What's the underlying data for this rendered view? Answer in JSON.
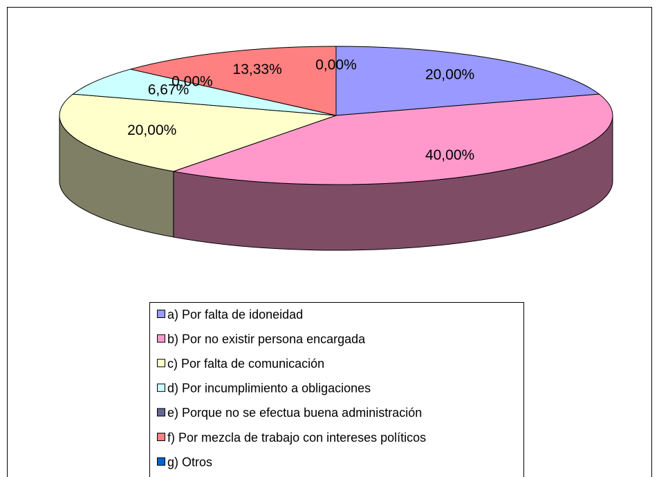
{
  "chart_data": {
    "type": "pie",
    "three_d": true,
    "categories": [
      "a) Por falta de idoneidad",
      "b) Por no existir persona encargada",
      "c) Por falta de comunicación",
      "d) Por incumplimiento a obligaciones",
      "e) Porque no se efectua buena administración",
      "f) Por mezcla de trabajo con intereses políticos",
      "g) Otros"
    ],
    "values": [
      20,
      40,
      20,
      6.67,
      0,
      13.33,
      0
    ],
    "value_labels": [
      "20,00%",
      "40,00%",
      "20,00%",
      "6,67%",
      "0,00%",
      "13,33%",
      "0,00%"
    ],
    "colors": [
      "#9999ff",
      "#ff99cc",
      "#ffffcc",
      "#ccffff",
      "#666699",
      "#ff8080",
      "#0066cc"
    ],
    "legend": "bottom"
  }
}
